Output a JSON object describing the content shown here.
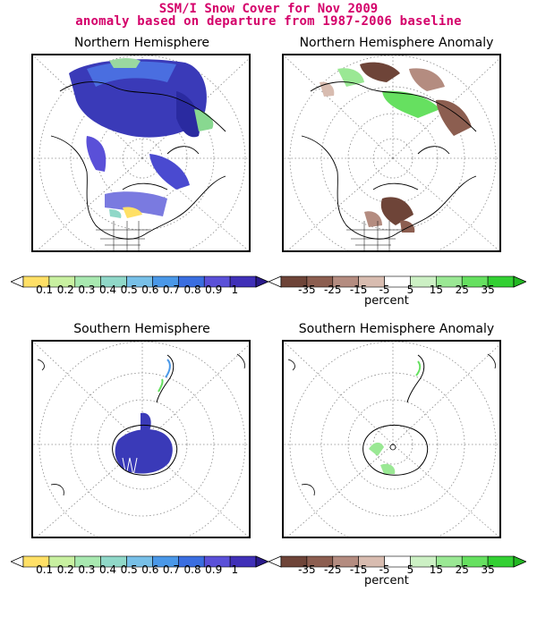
{
  "title": {
    "line1": "SSM/I Snow Cover for Nov 2009",
    "line2": "anomaly based on departure from 1987-2006 baseline"
  },
  "panels": {
    "nh": {
      "title": "Northern Hemisphere"
    },
    "nh_anom": {
      "title": "Northern Hemisphere Anomaly"
    },
    "sh": {
      "title": "Southern Hemisphere"
    },
    "sh_anom": {
      "title": "Southern Hemisphere Anomaly"
    }
  },
  "colorbars": {
    "fraction": {
      "labels": [
        "0.1",
        "0.2",
        "0.3",
        "0.4",
        "0.5",
        "0.6",
        "0.7",
        "0.8",
        "0.9",
        "1"
      ],
      "colors": [
        "#ffffff",
        "#ffe066",
        "#c8f0a0",
        "#a8e8b0",
        "#90d8c8",
        "#78c0e8",
        "#4a98e8",
        "#3a6ee0",
        "#5a50d8",
        "#4030b8",
        "#2a1a8a"
      ]
    },
    "anomaly": {
      "labels": [
        "-35",
        "-25",
        "-15",
        "-5",
        "5",
        "15",
        "25",
        "35"
      ],
      "unit": "percent",
      "colors": [
        "#ffffff",
        "#6e4438",
        "#8c5e50",
        "#b48c80",
        "#d8bcb0",
        "#ffffff",
        "#ccf0c4",
        "#9ae894",
        "#66e060",
        "#33d033",
        "#22b822"
      ]
    }
  }
}
